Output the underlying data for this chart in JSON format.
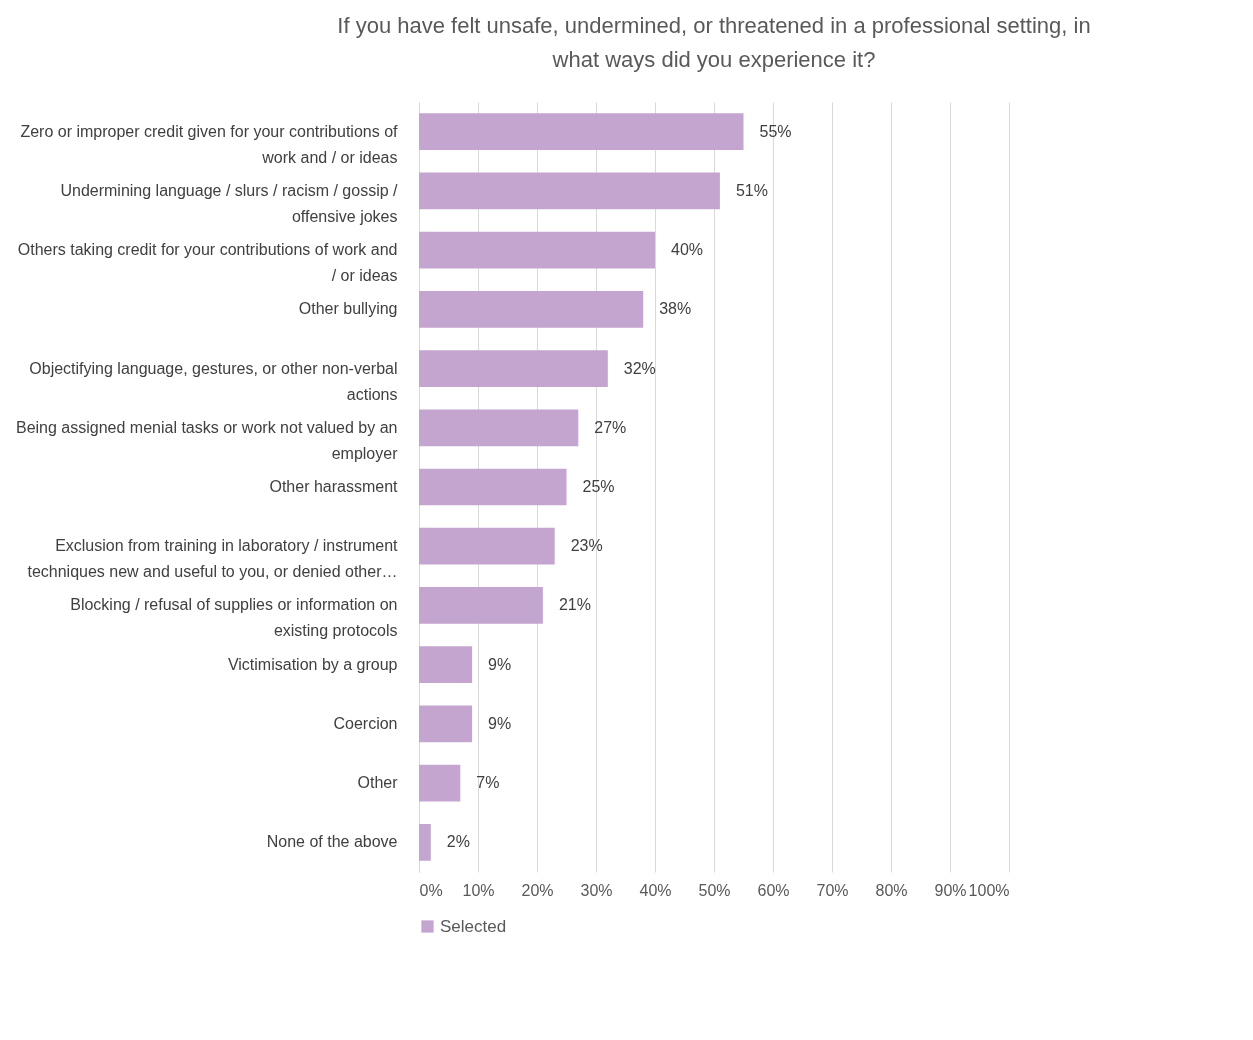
{
  "chart_data": {
    "type": "bar",
    "orientation": "horizontal",
    "title": "If you have felt unsafe, undermined, or threatened in a professional setting, in what ways did you experience it?",
    "categories": [
      "Zero or improper credit given for your contributions of work and / or ideas",
      "Undermining language / slurs / racism / gossip / offensive jokes",
      "Others taking credit for your contributions of work and / or ideas",
      "Other bullying",
      "Objectifying language, gestures, or other non-verbal actions",
      "Being assigned menial tasks or work not valued by an employer",
      "Other harassment",
      "Exclusion from training in laboratory / instrument techniques new and useful to you, or denied other…",
      "Blocking / refusal of supplies or information on existing protocols",
      "Victimisation by a group",
      "Coercion",
      "Other",
      "None of the above"
    ],
    "series": [
      {
        "name": "Selected",
        "color": "#c3a5cf",
        "values": [
          55,
          51,
          40,
          38,
          32,
          27,
          25,
          23,
          21,
          9,
          9,
          7,
          2
        ],
        "value_labels": [
          "55%",
          "51%",
          "40%",
          "38%",
          "32%",
          "27%",
          "25%",
          "23%",
          "21%",
          "9%",
          "9%",
          "7%",
          "2%"
        ]
      }
    ],
    "xlim": [
      0,
      100
    ],
    "xticks": [
      {
        "value": 0,
        "label": "0%"
      },
      {
        "value": 10,
        "label": "10%"
      },
      {
        "value": 20,
        "label": "20%"
      },
      {
        "value": 30,
        "label": "30%"
      },
      {
        "value": 40,
        "label": "40%"
      },
      {
        "value": 50,
        "label": "50%"
      },
      {
        "value": 60,
        "label": "60%"
      },
      {
        "value": 70,
        "label": "70%"
      },
      {
        "value": 80,
        "label": "80%"
      },
      {
        "value": 90,
        "label": "90%"
      },
      {
        "value": 100,
        "label": "100%"
      }
    ],
    "grid": "x",
    "legend": "bottom"
  }
}
